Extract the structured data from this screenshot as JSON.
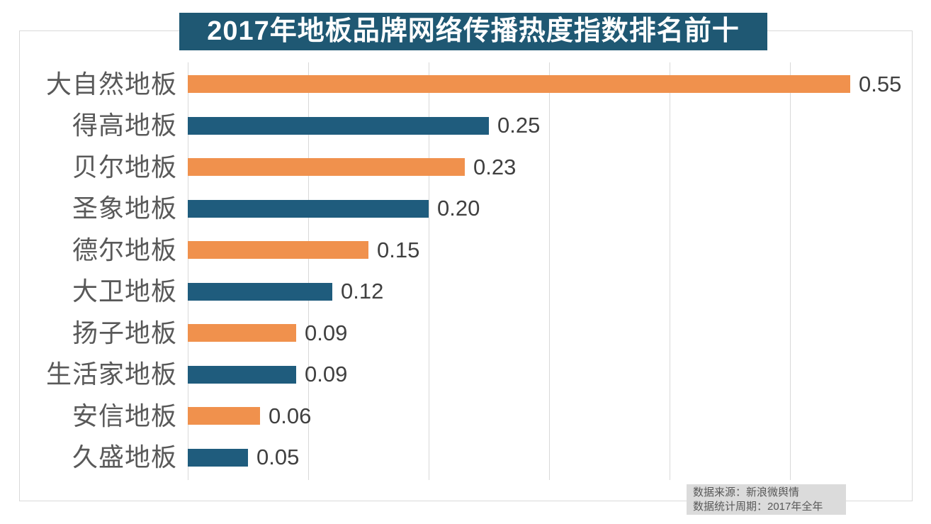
{
  "chart_data": {
    "type": "bar",
    "orientation": "horizontal",
    "title": "2017年地板品牌网络传播热度指数排名前十",
    "categories": [
      "大自然地板",
      "得高地板",
      "贝尔地板",
      "圣象地板",
      "德尔地板",
      "大卫地板",
      "扬子地板",
      "生活家地板",
      "安信地板",
      "久盛地板"
    ],
    "values": [
      0.55,
      0.25,
      0.23,
      0.2,
      0.15,
      0.12,
      0.09,
      0.09,
      0.06,
      0.05
    ],
    "value_labels": [
      "0.55",
      "0.25",
      "0.23",
      "0.20",
      "0.15",
      "0.12",
      "0.09",
      "0.09",
      "0.06",
      "0.05"
    ],
    "xlabel": "",
    "ylabel": "",
    "xlim": [
      0,
      0.6
    ],
    "grid_step": 0.1,
    "grid": true,
    "legend_position": "none",
    "palette": [
      "#F0914D",
      "#1F5C7D"
    ]
  },
  "footer": {
    "lines": [
      "数据来源：新浪微舆情",
      "数据统计周期：2017年全年"
    ]
  },
  "colors": {
    "bar_orange": "#F0914D",
    "bar_blue": "#1F5C7D",
    "title_bg": "#1F5873",
    "title_text": "#FFFFFF",
    "grid": "#D9D9D9",
    "frame": "#D9D9D9",
    "category_text": "#595959",
    "value_text": "#404040",
    "footer_bg": "#DBDBDB",
    "footer_text": "#595959",
    "background": "#FFFFFF"
  }
}
